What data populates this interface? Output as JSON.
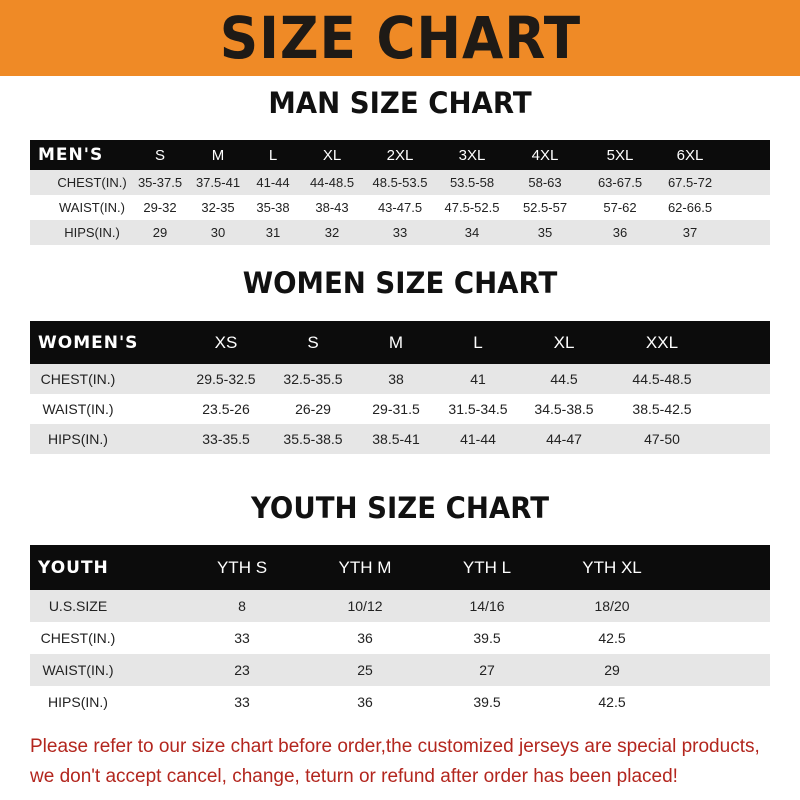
{
  "title": "SIZE CHART",
  "colors": {
    "banner": "#ef8a26",
    "header_row": "#0c0c0c",
    "stripe": "#e6e6e6",
    "notice": "#b3261e"
  },
  "tables": [
    {
      "heading": "MAN SIZE CHART",
      "label": "MEN'S",
      "sizes": [
        "S",
        "M",
        "L",
        "XL",
        "2XL",
        "3XL",
        "4XL",
        "5XL",
        "6XL"
      ],
      "rows": [
        {
          "label": "CHEST(IN.)",
          "values": [
            "35-37.5",
            "37.5-41",
            "41-44",
            "44-48.5",
            "48.5-53.5",
            "53.5-58",
            "58-63",
            "63-67.5",
            "67.5-72"
          ]
        },
        {
          "label": "WAIST(IN.)",
          "values": [
            "29-32",
            "32-35",
            "35-38",
            "38-43",
            "43-47.5",
            "47.5-52.5",
            "52.5-57",
            "57-62",
            "62-66.5"
          ]
        },
        {
          "label": "HIPS(IN.)",
          "values": [
            "29",
            "30",
            "31",
            "32",
            "33",
            "34",
            "35",
            "36",
            "37"
          ]
        }
      ]
    },
    {
      "heading": "WOMEN SIZE CHART",
      "label": "WOMEN'S",
      "sizes": [
        "XS",
        "S",
        "M",
        "L",
        "XL",
        "XXL"
      ],
      "rows": [
        {
          "label": "CHEST(IN.)",
          "values": [
            "29.5-32.5",
            "32.5-35.5",
            "38",
            "41",
            "44.5",
            "44.5-48.5"
          ]
        },
        {
          "label": "WAIST(IN.)",
          "values": [
            "23.5-26",
            "26-29",
            "29-31.5",
            "31.5-34.5",
            "34.5-38.5",
            "38.5-42.5"
          ]
        },
        {
          "label": "HIPS(IN.)",
          "values": [
            "33-35.5",
            "35.5-38.5",
            "38.5-41",
            "41-44",
            "44-47",
            "47-50"
          ]
        }
      ]
    },
    {
      "heading": "YOUTH SIZE CHART",
      "label": "YOUTH",
      "sizes": [
        "YTH S",
        "YTH M",
        "YTH L",
        "YTH XL"
      ],
      "rows": [
        {
          "label": "U.S.SIZE",
          "values": [
            "8",
            "10/12",
            "14/16",
            "18/20"
          ]
        },
        {
          "label": "CHEST(IN.)",
          "values": [
            "33",
            "36",
            "39.5",
            "42.5"
          ]
        },
        {
          "label": "WAIST(IN.)",
          "values": [
            "23",
            "25",
            "27",
            "29"
          ]
        },
        {
          "label": "HIPS(IN.)",
          "values": [
            "33",
            "36",
            "39.5",
            "42.5"
          ]
        }
      ]
    }
  ],
  "notice": {
    "line1": "Please refer to our size chart before order,the customized jerseys are special products,",
    "line2": "we don't accept cancel, change, teturn or refund after order has been placed!"
  }
}
